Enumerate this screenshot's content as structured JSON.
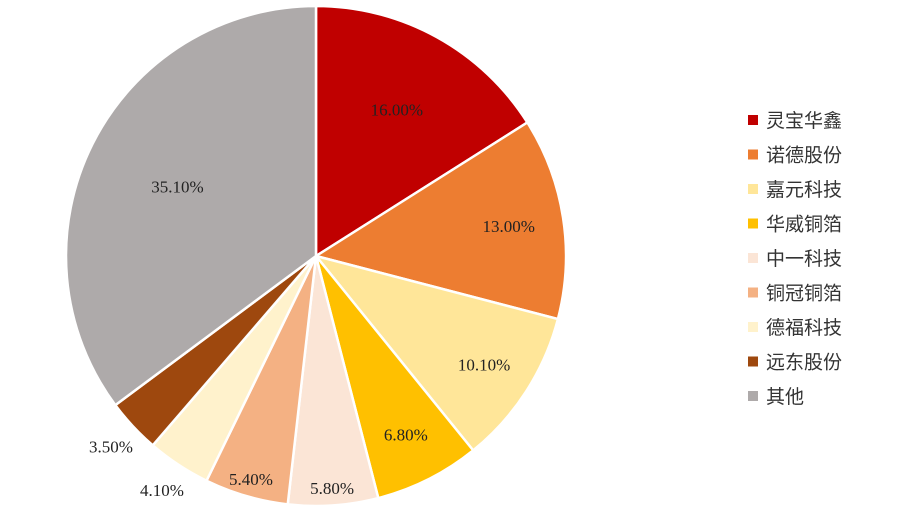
{
  "chart_data": {
    "type": "pie",
    "title": "",
    "legend_position": "right",
    "slices": [
      {
        "label": "灵宝华鑫",
        "value": 16.0,
        "display": "16.00%",
        "color": "#C00000"
      },
      {
        "label": "诺德股份",
        "value": 13.0,
        "display": "13.00%",
        "color": "#ED7D31"
      },
      {
        "label": "嘉元科技",
        "value": 10.1,
        "display": "10.10%",
        "color": "#FFE699"
      },
      {
        "label": "华威铜箔",
        "value": 6.8,
        "display": "6.80%",
        "color": "#FFC000"
      },
      {
        "label": "中一科技",
        "value": 5.8,
        "display": "5.80%",
        "color": "#FBE5D6"
      },
      {
        "label": "铜冠铜箔",
        "value": 5.4,
        "display": "5.40%",
        "color": "#F4B183"
      },
      {
        "label": "德福科技",
        "value": 4.1,
        "display": "4.10%",
        "color": "#FFF2CC"
      },
      {
        "label": "远东股份",
        "value": 3.5,
        "display": "3.50%",
        "color": "#9E480E"
      },
      {
        "label": "其他",
        "value": 35.1,
        "display": "35.10%",
        "color": "#AEAAAA"
      }
    ]
  }
}
